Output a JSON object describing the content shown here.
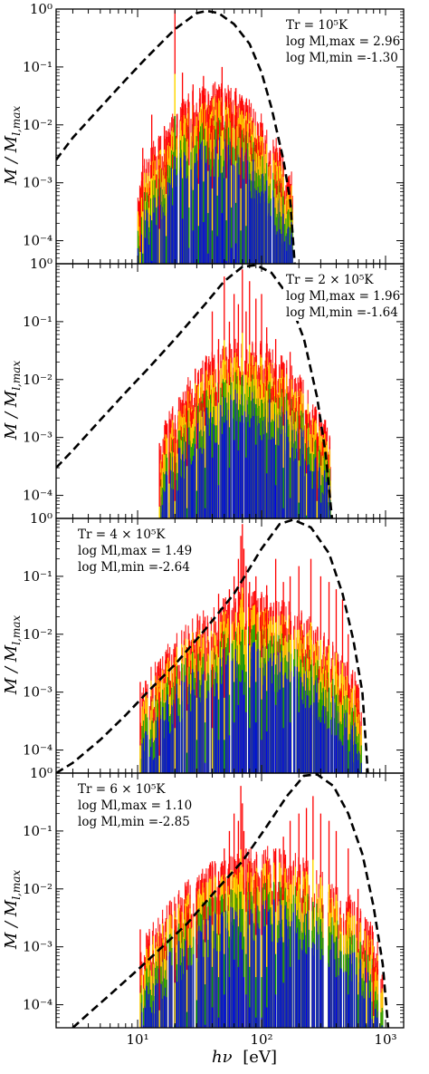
{
  "figure": {
    "ylabel_main": "M",
    "ylabel_sub": "l,max",
    "xlabel_main": "hν",
    "xlabel_unit": "[eV]"
  },
  "chart_data": [
    {
      "type": "line",
      "xscale": "log",
      "yscale": "log",
      "xlim": [
        2.2,
        1400
      ],
      "ylim": [
        4e-05,
        1
      ],
      "y_tick_labels": [
        "10⁰",
        "10⁻¹",
        "10⁻²",
        "10⁻³",
        "10⁻⁴"
      ],
      "annotation": {
        "line1": "Tr = 10⁵K",
        "line2": "log Ml,max = 2.96",
        "line3": "log Ml,min =-1.30"
      },
      "annotation_position": "top-right",
      "series": [
        {
          "color": "#000000",
          "style": "dashed",
          "x": [
            2.2,
            3,
            5,
            8,
            12,
            20,
            30,
            36,
            45,
            60,
            80,
            100,
            120,
            150,
            170,
            185
          ],
          "y": [
            0.0025,
            0.006,
            0.02,
            0.06,
            0.15,
            0.45,
            0.85,
            0.93,
            0.85,
            0.55,
            0.25,
            0.08,
            0.02,
            0.0025,
            0.0005,
            4e-05
          ]
        }
      ],
      "line_spectrum": {
        "xrange": [
          10,
          180
        ],
        "peak_positions": [
          10.5,
          11,
          13,
          15,
          17,
          20,
          23,
          26,
          28,
          31,
          34,
          37,
          40,
          44,
          48,
          52,
          57,
          62,
          68,
          75
        ],
        "peak_values": [
          0.0008,
          0.004,
          0.015,
          0.002,
          0.008,
          0.95,
          0.08,
          0.025,
          0.05,
          0.012,
          0.07,
          0.02,
          0.01,
          0.04,
          0.1,
          0.015,
          0.025,
          0.03,
          0.01,
          0.012
        ],
        "colors_by_level": [
          "#ff0000",
          "#ffee00",
          "#00a000",
          "#0000ee"
        ]
      }
    },
    {
      "type": "line",
      "xscale": "log",
      "yscale": "log",
      "xlim": [
        2.2,
        1400
      ],
      "ylim": [
        4e-05,
        1
      ],
      "y_tick_labels": [
        "10⁰",
        "10⁻¹",
        "10⁻²",
        "10⁻³",
        "10⁻⁴"
      ],
      "annotation": {
        "line1": "Tr = 2 × 10⁵K",
        "line2": "log Ml,max = 1.96",
        "line3": "log Ml,min =-1.64"
      },
      "annotation_position": "top-right",
      "series": [
        {
          "color": "#000000",
          "style": "dashed",
          "x": [
            2.2,
            3,
            5,
            8,
            12,
            20,
            35,
            50,
            70,
            90,
            120,
            160,
            220,
            280,
            330,
            370
          ],
          "y": [
            0.0003,
            0.0006,
            0.002,
            0.006,
            0.015,
            0.05,
            0.2,
            0.5,
            0.88,
            0.95,
            0.7,
            0.3,
            0.05,
            0.005,
            0.0005,
            4e-05
          ]
        }
      ],
      "line_spectrum": {
        "xrange": [
          15,
          360
        ],
        "peak_positions": [
          15,
          18,
          20,
          25,
          30,
          35,
          40,
          45,
          50,
          55,
          60,
          65,
          70,
          75,
          80,
          90,
          100,
          110,
          130,
          150,
          170,
          200,
          230,
          280
        ],
        "peak_values": [
          0.0008,
          0.002,
          0.001,
          0.004,
          0.008,
          0.02,
          0.15,
          0.05,
          0.6,
          0.1,
          0.3,
          0.2,
          0.8,
          0.15,
          0.5,
          0.25,
          0.3,
          0.08,
          0.05,
          0.02,
          0.03,
          0.005,
          0.003,
          0.001
        ],
        "colors_by_level": [
          "#ff0000",
          "#ffee00",
          "#00a000",
          "#0000ee"
        ]
      }
    },
    {
      "type": "line",
      "xscale": "log",
      "yscale": "log",
      "xlim": [
        2.2,
        1400
      ],
      "ylim": [
        4e-05,
        1
      ],
      "y_tick_labels": [
        "10⁰",
        "10⁻¹",
        "10⁻²",
        "10⁻³",
        "10⁻⁴"
      ],
      "annotation": {
        "line1": "Tr = 4 × 10⁵K",
        "line2": "log Ml,max = 1.49",
        "line3": "log Ml,min =-2.64"
      },
      "annotation_position": "top-left",
      "series": [
        {
          "color": "#000000",
          "style": "dashed",
          "x": [
            2.2,
            3,
            5,
            8,
            12,
            20,
            35,
            60,
            100,
            140,
            180,
            250,
            350,
            450,
            550,
            650,
            720
          ],
          "y": [
            4e-05,
            6e-05,
            0.00015,
            0.0004,
            0.001,
            0.003,
            0.012,
            0.05,
            0.3,
            0.8,
            0.95,
            0.7,
            0.25,
            0.05,
            0.008,
            0.001,
            4e-05
          ]
        }
      ],
      "line_spectrum": {
        "xrange": [
          10.5,
          650
        ],
        "peak_positions": [
          10.5,
          15,
          20,
          25,
          30,
          35,
          40,
          45,
          50,
          55,
          60,
          65,
          68,
          70,
          72,
          75,
          80,
          90,
          100,
          110,
          130,
          150,
          170,
          200,
          250,
          300,
          350,
          400,
          450,
          500
        ],
        "peak_values": [
          0.0015,
          0.001,
          0.003,
          0.006,
          0.01,
          0.02,
          0.003,
          0.05,
          0.01,
          0.06,
          0.1,
          0.2,
          0.5,
          0.8,
          0.3,
          0.15,
          0.08,
          0.1,
          0.05,
          0.07,
          0.2,
          0.08,
          0.1,
          0.15,
          0.2,
          0.1,
          0.08,
          0.06,
          0.04,
          0.01
        ],
        "colors_by_level": [
          "#ff0000",
          "#ffee00",
          "#00a000",
          "#0000ee"
        ]
      }
    },
    {
      "type": "line",
      "xscale": "log",
      "yscale": "log",
      "xlim": [
        2.2,
        1400
      ],
      "ylim": [
        4e-05,
        1
      ],
      "y_tick_labels": [
        "10⁰",
        "10⁻¹",
        "10⁻²",
        "10⁻³",
        "10⁻⁴"
      ],
      "x_tick_labels": [
        "10¹",
        "10²",
        "10³"
      ],
      "annotation": {
        "line1": "Tr = 6 × 10⁵K",
        "line2": "log Ml,max = 1.10",
        "line3": "log Ml,min =-2.85"
      },
      "annotation_position": "top-left",
      "series": [
        {
          "color": "#000000",
          "style": "dashed",
          "x": [
            3,
            4,
            6,
            10,
            15,
            25,
            40,
            70,
            110,
            160,
            220,
            280,
            380,
            500,
            650,
            800,
            950,
            1050
          ],
          "y": [
            4e-05,
            7e-05,
            0.00015,
            0.0004,
            0.0009,
            0.0025,
            0.008,
            0.03,
            0.12,
            0.4,
            0.9,
            0.95,
            0.6,
            0.2,
            0.04,
            0.005,
            0.0005,
            4e-05
          ]
        }
      ],
      "line_spectrum": {
        "xrange": [
          10.5,
          950
        ],
        "peak_positions": [
          10.5,
          15,
          20,
          25,
          30,
          35,
          40,
          45,
          50,
          55,
          60,
          65,
          68,
          70,
          72,
          75,
          80,
          90,
          100,
          110,
          130,
          150,
          170,
          200,
          230,
          260,
          300,
          350,
          400,
          500,
          600,
          700,
          800
        ],
        "peak_values": [
          0.002,
          0.001,
          0.003,
          0.005,
          0.008,
          0.015,
          0.03,
          0.02,
          0.05,
          0.1,
          0.2,
          0.15,
          0.6,
          0.3,
          0.1,
          0.05,
          0.03,
          0.02,
          0.02,
          0.03,
          0.05,
          0.08,
          0.15,
          0.2,
          0.25,
          0.4,
          0.2,
          0.15,
          0.1,
          0.05,
          0.01,
          0.003,
          0.0008
        ],
        "colors_by_level": [
          "#ff0000",
          "#ffee00",
          "#00a000",
          "#0000ee"
        ]
      }
    }
  ]
}
